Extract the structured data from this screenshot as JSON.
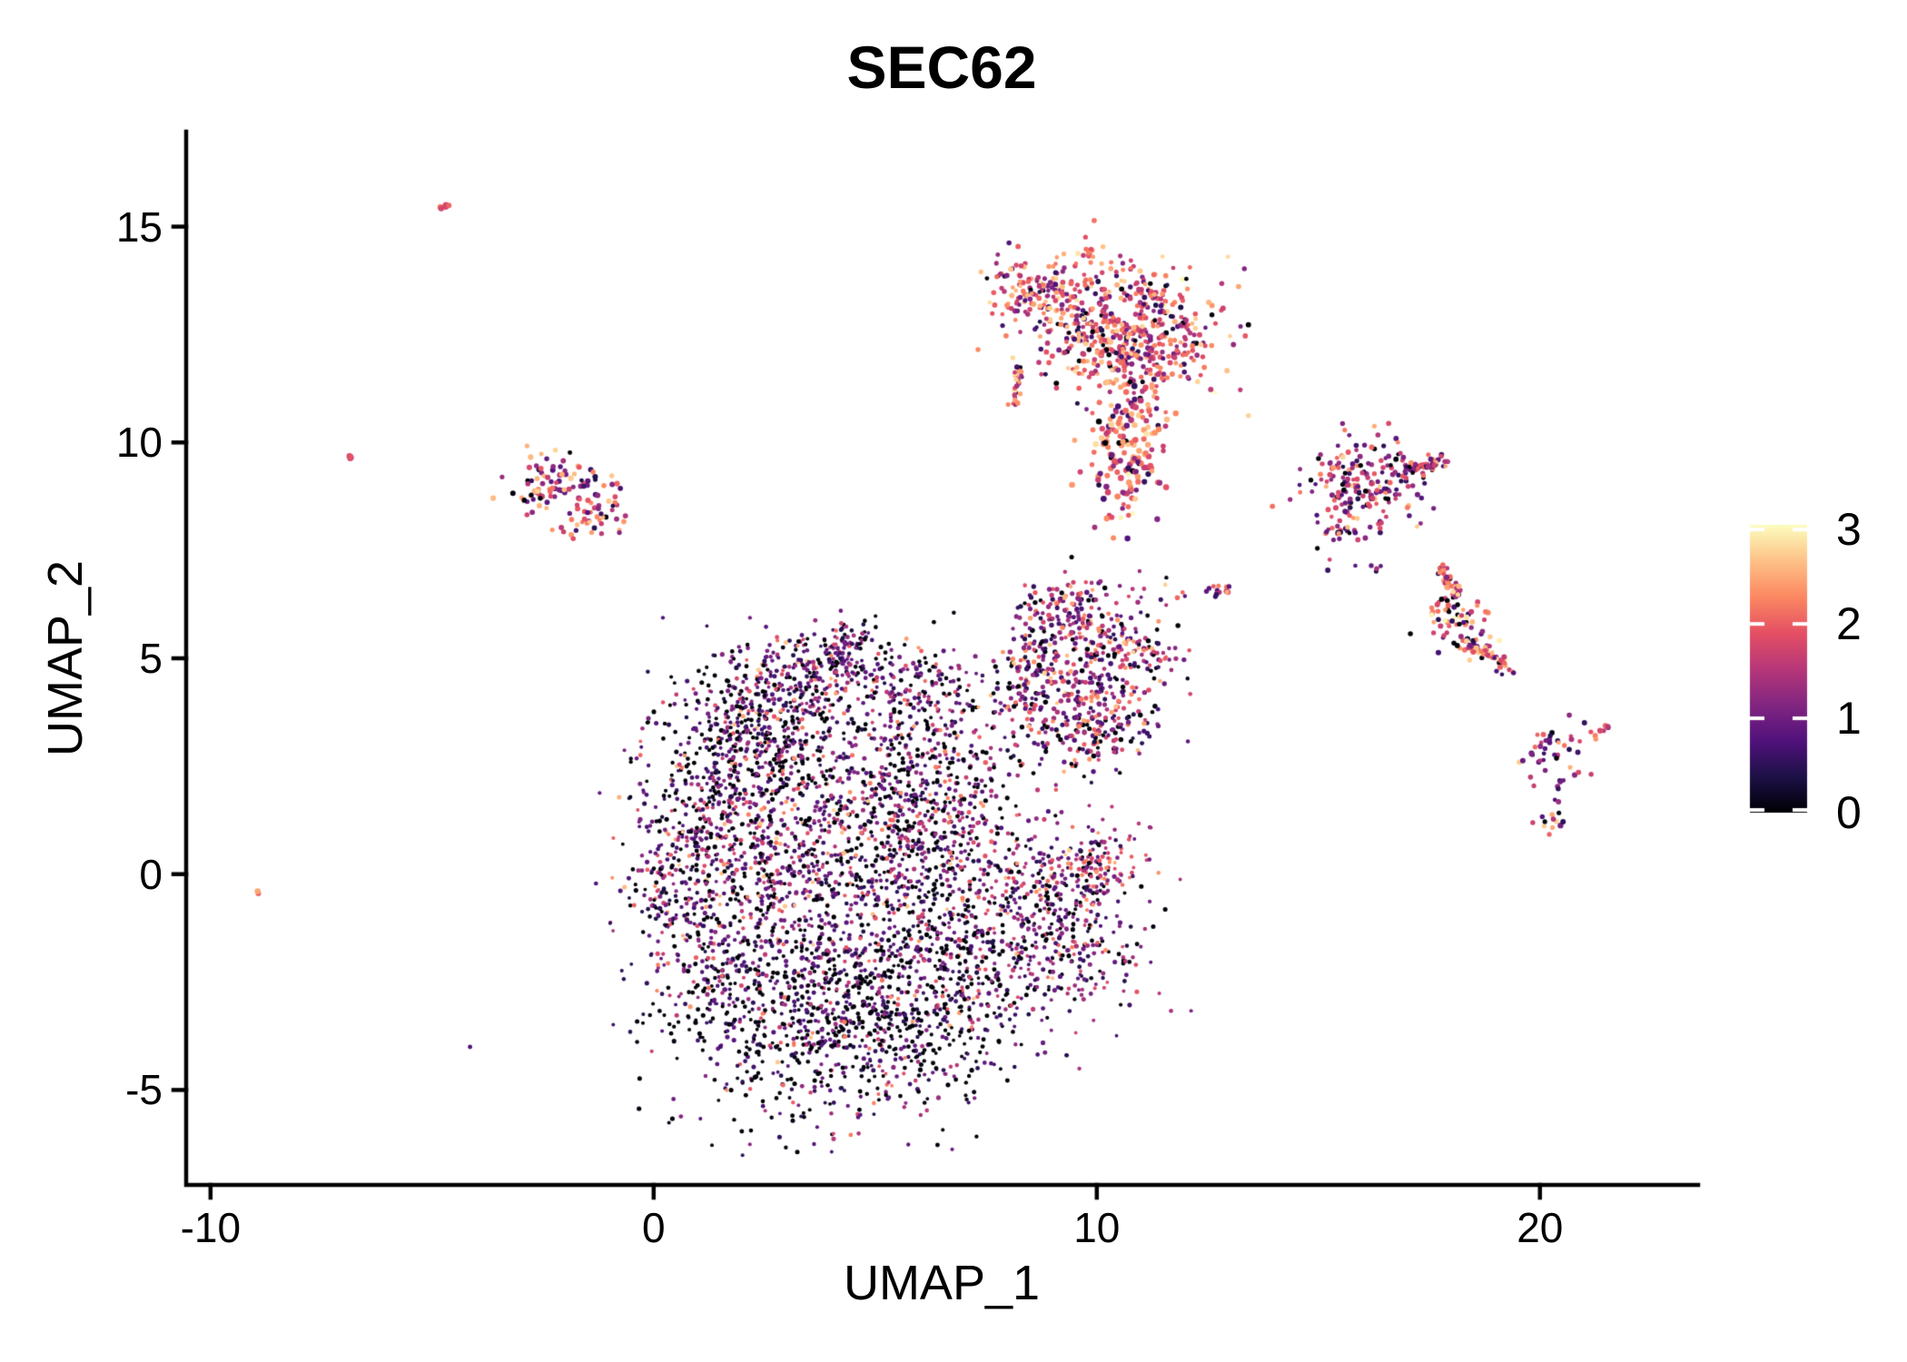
{
  "title": "SEC62",
  "axes": {
    "x": {
      "label": "UMAP_1",
      "tick_labels": [
        "-10",
        "0",
        "10",
        "20"
      ]
    },
    "y": {
      "label": "UMAP_2",
      "tick_labels": [
        "15",
        "10",
        "5",
        "0",
        "-5"
      ]
    }
  },
  "colorbar": {
    "tick_labels": [
      "3",
      "2",
      "1",
      "0"
    ],
    "tick_values": [
      3,
      2,
      1,
      0
    ]
  },
  "chart_data": {
    "type": "scatter",
    "title": "SEC62",
    "xlabel": "UMAP_1",
    "ylabel": "UMAP_2",
    "xlim": [
      -10.55,
      23.57
    ],
    "ylim": [
      -7.2,
      17.2
    ],
    "x_ticks": [
      -10,
      0,
      10,
      20
    ],
    "y_ticks": [
      15,
      10,
      5,
      0,
      -5
    ],
    "grid": false,
    "legend_position": "right-colorbar",
    "color_scale": {
      "name": "magma",
      "domain": [
        0,
        3.05
      ],
      "ticks": [
        3,
        2,
        1,
        0
      ],
      "stops": [
        [
          0.0,
          "#000004"
        ],
        [
          0.125,
          "#1d1147"
        ],
        [
          0.25,
          "#51127c"
        ],
        [
          0.375,
          "#822681"
        ],
        [
          0.5,
          "#b73779"
        ],
        [
          0.625,
          "#e55064"
        ],
        [
          0.75,
          "#fb8861"
        ],
        [
          0.875,
          "#fec287"
        ],
        [
          1.0,
          "#fcfdbf"
        ]
      ]
    },
    "level_order": [
      "zero",
      "low",
      "midlow",
      "mid",
      "high",
      "vhigh",
      "top"
    ],
    "expression_levels": {
      "zero": [
        0,
        0.08
      ],
      "low": [
        0.35,
        1.0
      ],
      "midlow": [
        1.0,
        1.5
      ],
      "mid": [
        1.5,
        2.0
      ],
      "high": [
        2.0,
        2.45
      ],
      "vhigh": [
        2.45,
        2.8
      ],
      "top": [
        2.8,
        3.05
      ]
    },
    "mixes": {
      "high": [
        0,
        0,
        0,
        0.2,
        0.7,
        0.1,
        0
      ],
      "mid": [
        0,
        0,
        0.2,
        0.6,
        0.2,
        0,
        0
      ],
      "low": [
        0,
        0.7,
        0.3,
        0,
        0,
        0,
        0
      ],
      "leftA": [
        0.06,
        0.32,
        0.22,
        0.12,
        0.1,
        0.18,
        0
      ],
      "leftB": [
        0.04,
        0.14,
        0.16,
        0.28,
        0.28,
        0.1,
        0
      ],
      "topMain": [
        0.05,
        0.12,
        0.16,
        0.27,
        0.25,
        0.13,
        0.02
      ],
      "topTail": [
        0.04,
        0.1,
        0.12,
        0.24,
        0.27,
        0.19,
        0.04
      ],
      "rightA": [
        0.08,
        0.27,
        0.25,
        0.22,
        0.13,
        0.05,
        0
      ],
      "rightB": [
        0.07,
        0.12,
        0.12,
        0.2,
        0.26,
        0.15,
        0.08
      ],
      "farRight": [
        0.06,
        0.33,
        0.27,
        0.2,
        0.1,
        0.04,
        0
      ],
      "frBottom": [
        0.12,
        0.1,
        0.15,
        0.25,
        0.15,
        0.23,
        0
      ],
      "midC": [
        0.14,
        0.33,
        0.22,
        0.16,
        0.09,
        0.06,
        0
      ],
      "central": [
        0.28,
        0.36,
        0.19,
        0.1,
        0.05,
        0.02,
        0
      ],
      "centralDark": [
        0.38,
        0.32,
        0.16,
        0.09,
        0.04,
        0.01,
        0
      ],
      "centralBlack": [
        0.47,
        0.32,
        0.12,
        0.06,
        0.025,
        0.005,
        0
      ],
      "rightLobe": [
        0.24,
        0.3,
        0.22,
        0.15,
        0.07,
        0.02,
        0
      ],
      "rightLobeTop": [
        0.1,
        0.22,
        0.22,
        0.25,
        0.15,
        0.06,
        0
      ]
    },
    "clusters": [
      {
        "name": "speck-top-left",
        "type": "streak",
        "cx": -4.72,
        "cy": 15.45,
        "len": 0.3,
        "angle": 40,
        "jitter": 0.05,
        "n": 5,
        "mix": "high",
        "r": 3.0
      },
      {
        "name": "speck-left-upper",
        "type": "streak",
        "cx": -6.78,
        "cy": 9.68,
        "len": 0.2,
        "angle": 35,
        "jitter": 0.04,
        "n": 4,
        "mix": "mid",
        "r": 2.8
      },
      {
        "name": "speck-left-lower",
        "type": "blob",
        "cx": -8.85,
        "cy": -0.45,
        "rx": 0.06,
        "ry": 0.05,
        "rot": 0,
        "n": 2,
        "mix": "high",
        "r": 2.8
      },
      {
        "name": "left-cluster-top",
        "type": "blob",
        "cx": -2.05,
        "cy": 9.2,
        "rx": 0.55,
        "ry": 0.3,
        "rot": -15,
        "n": 60,
        "mix": "leftA",
        "r": 2.4
      },
      {
        "name": "left-cluster-west",
        "type": "blob",
        "cx": -2.6,
        "cy": 8.8,
        "rx": 0.33,
        "ry": 0.22,
        "rot": 25,
        "n": 26,
        "mix": "leftA",
        "r": 2.4
      },
      {
        "name": "left-cluster-southeast",
        "type": "blob",
        "cx": -1.35,
        "cy": 8.32,
        "rx": 0.4,
        "ry": 0.28,
        "rot": 15,
        "n": 48,
        "mix": "leftB",
        "r": 2.4
      },
      {
        "name": "top-cluster-left-arm",
        "type": "blob",
        "cx": 8.7,
        "cy": 13.4,
        "rx": 0.55,
        "ry": 0.42,
        "rot": -15,
        "n": 150,
        "mix": "topMain",
        "r": 2.3
      },
      {
        "name": "top-cluster-body",
        "type": "blob",
        "cx": 10.7,
        "cy": 12.5,
        "rx": 1.0,
        "ry": 0.8,
        "rot": 0,
        "n": 560,
        "mix": "topMain",
        "r": 2.3
      },
      {
        "name": "top-cluster-crown",
        "type": "streak",
        "cx": 9.85,
        "cy": 14.4,
        "len": 0.3,
        "angle": 55,
        "jitter": 0.06,
        "n": 10,
        "mix": "mid",
        "r": 2.5
      },
      {
        "name": "top-cluster-left-edge",
        "type": "streak",
        "cx": 8.2,
        "cy": 11.3,
        "len": 0.9,
        "angle": 80,
        "jitter": 0.08,
        "n": 30,
        "mix": "topMain",
        "r": 2.3
      },
      {
        "name": "top-cluster-tail",
        "type": "blob",
        "cx": 10.7,
        "cy": 9.9,
        "rx": 0.42,
        "ry": 0.8,
        "rot": 0,
        "n": 150,
        "mix": "topTail",
        "r": 2.7
      },
      {
        "name": "top-cluster-tail-tip",
        "type": "blob",
        "cx": 10.55,
        "cy": 8.55,
        "rx": 0.12,
        "ry": 0.2,
        "rot": 0,
        "n": 8,
        "mix": "topTail",
        "r": 2.4
      },
      {
        "name": "right-upper-body",
        "type": "blob",
        "cx": 16.0,
        "cy": 9.05,
        "rx": 0.6,
        "ry": 0.52,
        "rot": 0,
        "n": 190,
        "mix": "rightA",
        "r": 2.3
      },
      {
        "name": "right-upper-arm",
        "type": "streak",
        "cx": 17.4,
        "cy": 9.45,
        "len": 1.1,
        "angle": 18,
        "jitter": 0.09,
        "n": 55,
        "mix": "rightA",
        "r": 2.3
      },
      {
        "name": "right-upper-foot",
        "type": "blob",
        "cx": 15.35,
        "cy": 7.95,
        "rx": 0.3,
        "ry": 0.18,
        "rot": 0,
        "n": 22,
        "mix": "rightA",
        "r": 2.3
      },
      {
        "name": "right-upper-dots",
        "type": "blob",
        "cx": 15.9,
        "cy": 7.15,
        "rx": 0.3,
        "ry": 0.2,
        "rot": 0,
        "n": 6,
        "mix": "low",
        "r": 2.3
      },
      {
        "name": "right-mid-snake-top",
        "type": "streak",
        "cx": 17.95,
        "cy": 6.8,
        "len": 0.8,
        "angle": -62,
        "jitter": 0.07,
        "n": 45,
        "mix": "rightB",
        "r": 2.4
      },
      {
        "name": "right-mid-snake-body",
        "type": "blob",
        "cx": 18.1,
        "cy": 5.9,
        "rx": 0.5,
        "ry": 0.33,
        "rot": -25,
        "n": 70,
        "mix": "rightB",
        "r": 2.4
      },
      {
        "name": "right-mid-snake-low",
        "type": "streak",
        "cx": 18.75,
        "cy": 5.15,
        "len": 1.0,
        "angle": -25,
        "jitter": 0.09,
        "n": 50,
        "mix": "rightB",
        "r": 2.4
      },
      {
        "name": "right-mid-snake-tip",
        "type": "blob",
        "cx": 19.3,
        "cy": 4.7,
        "rx": 0.14,
        "ry": 0.1,
        "rot": 0,
        "n": 6,
        "mix": "rightB",
        "r": 2.3
      },
      {
        "name": "far-right-fork",
        "type": "blob",
        "cx": 20.3,
        "cy": 2.7,
        "rx": 0.42,
        "ry": 0.33,
        "rot": -35,
        "n": 42,
        "mix": "farRight",
        "r": 2.4
      },
      {
        "name": "far-right-streak",
        "type": "streak",
        "cx": 21.35,
        "cy": 3.3,
        "len": 0.45,
        "angle": 35,
        "jitter": 0.05,
        "n": 9,
        "mix": "mid",
        "r": 2.5
      },
      {
        "name": "far-right-trail",
        "type": "streak",
        "cx": 20.4,
        "cy": 1.95,
        "len": 0.5,
        "angle": 85,
        "jitter": 0.04,
        "n": 4,
        "mix": "low",
        "r": 2.3
      },
      {
        "name": "far-right-bottom",
        "type": "blob",
        "cx": 20.3,
        "cy": 1.25,
        "rx": 0.2,
        "ry": 0.16,
        "rot": -30,
        "n": 13,
        "mix": "frBottom",
        "r": 2.5
      },
      {
        "name": "mid-right-streak",
        "type": "streak",
        "cx": 12.75,
        "cy": 6.55,
        "len": 0.55,
        "angle": 15,
        "jitter": 0.06,
        "n": 14,
        "mix": "rightA",
        "r": 2.4
      },
      {
        "name": "mid-right-dots",
        "type": "blob",
        "cx": 11.9,
        "cy": 6.5,
        "rx": 0.18,
        "ry": 0.1,
        "rot": 0,
        "n": 3,
        "mix": "high",
        "r": 2.3
      },
      {
        "name": "mid-cluster-top",
        "type": "blob",
        "cx": 9.3,
        "cy": 6.0,
        "rx": 0.55,
        "ry": 0.48,
        "rot": 0,
        "n": 120,
        "mix": "midC",
        "r": 2.1
      },
      {
        "name": "mid-cluster-east",
        "type": "blob",
        "cx": 10.4,
        "cy": 5.0,
        "rx": 0.72,
        "ry": 0.78,
        "rot": 0,
        "n": 240,
        "mix": "midC",
        "r": 2.1
      },
      {
        "name": "mid-cluster-west",
        "type": "blob",
        "cx": 8.8,
        "cy": 4.5,
        "rx": 0.62,
        "ry": 0.68,
        "rot": 0,
        "n": 180,
        "mix": "midC",
        "r": 2.1
      },
      {
        "name": "mid-cluster-south",
        "type": "blob",
        "cx": 9.9,
        "cy": 3.3,
        "rx": 0.92,
        "ry": 0.52,
        "rot": 8,
        "n": 160,
        "mix": "midC",
        "r": 2.1
      },
      {
        "name": "central-top-arm",
        "type": "blob",
        "cx": 3.3,
        "cy": 4.6,
        "rx": 1.05,
        "ry": 0.55,
        "rot": 5,
        "n": 310,
        "mix": "central",
        "r": 1.9
      },
      {
        "name": "central-top-knob",
        "type": "blob",
        "cx": 4.35,
        "cy": 5.25,
        "rx": 0.34,
        "ry": 0.24,
        "rot": 0,
        "n": 55,
        "mix": "central",
        "r": 1.9
      },
      {
        "name": "central-upper-mid",
        "type": "blob",
        "cx": 2.3,
        "cy": 3.0,
        "rx": 1.0,
        "ry": 0.78,
        "rot": 0,
        "n": 390,
        "mix": "centralDark",
        "r": 1.9
      },
      {
        "name": "central-west",
        "type": "blob",
        "cx": 1.1,
        "cy": 0.1,
        "rx": 0.88,
        "ry": 1.6,
        "rot": 0,
        "n": 560,
        "mix": "central",
        "r": 1.9
      },
      {
        "name": "central-core",
        "type": "blob",
        "cx": 3.7,
        "cy": 0.5,
        "rx": 1.55,
        "ry": 1.5,
        "rot": 0,
        "n": 780,
        "mix": "central",
        "r": 1.9
      },
      {
        "name": "central-east",
        "type": "blob",
        "cx": 6.3,
        "cy": 1.6,
        "rx": 1.12,
        "ry": 1.5,
        "rot": 0,
        "n": 580,
        "mix": "central",
        "r": 1.9
      },
      {
        "name": "central-bridge",
        "type": "blob",
        "cx": 6.05,
        "cy": 4.2,
        "rx": 0.75,
        "ry": 0.6,
        "rot": 0,
        "n": 130,
        "mix": "central",
        "r": 1.9
      },
      {
        "name": "central-south",
        "type": "blob",
        "cx": 4.0,
        "cy": -3.3,
        "rx": 1.75,
        "ry": 1.25,
        "rot": 0,
        "n": 880,
        "mix": "centralBlack",
        "r": 1.9
      },
      {
        "name": "central-southeast",
        "type": "blob",
        "cx": 6.7,
        "cy": -2.5,
        "rx": 1.0,
        "ry": 1.0,
        "rot": -20,
        "n": 330,
        "mix": "centralBlack",
        "r": 1.9
      },
      {
        "name": "central-east-lobe",
        "type": "blob",
        "cx": 9.0,
        "cy": -1.1,
        "rx": 1.12,
        "ry": 1.02,
        "rot": -15,
        "n": 430,
        "mix": "rightLobe",
        "r": 1.9
      },
      {
        "name": "central-east-lobe-top",
        "type": "blob",
        "cx": 9.7,
        "cy": 0.1,
        "rx": 0.78,
        "ry": 0.42,
        "rot": 10,
        "n": 140,
        "mix": "rightLobeTop",
        "r": 1.9
      }
    ]
  }
}
